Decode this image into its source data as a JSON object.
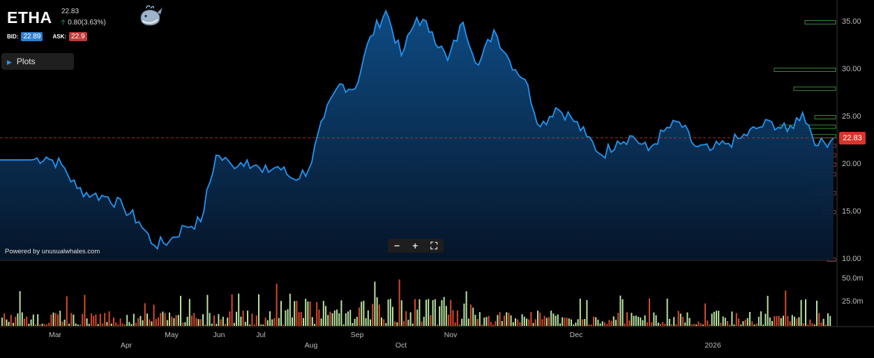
{
  "header": {
    "symbol": "ETHA",
    "last_price": "22.83",
    "change": "0.80(3.63%)",
    "bid_label": "BID:",
    "bid_value": "22.89",
    "ask_label": "ASK:",
    "ask_value": "22.9"
  },
  "controls": {
    "plots_label": "Plots",
    "zoom_out": "−",
    "zoom_in": "+",
    "fullscreen_icon": "fullscreen-icon"
  },
  "branding": {
    "powered_by": "Powered by unusualwhales.com",
    "logo_icon": "whale-logo-icon"
  },
  "colors": {
    "line": "#2196f3",
    "area_top": "#0f4f8a",
    "up_volume": "#b7e4a0",
    "down_volume": "#d84a2b",
    "current_price_tag": "#d9342b",
    "bid_pill": "#2f7fd0",
    "ask_pill": "#c03a3a"
  },
  "price_axis": {
    "labels": [
      "35.00",
      "30.00",
      "25.00",
      "20.00",
      "15.00",
      "10.00"
    ],
    "current_price_tag": "22.83"
  },
  "volume_axis": {
    "labels": [
      "50.0m",
      "25.0m"
    ]
  },
  "time_axis": {
    "labels": [
      "Mar",
      "Apr",
      "May",
      "Jun",
      "Jul",
      "Aug",
      "Sep",
      "Oct",
      "Nov",
      "Dec",
      "2026"
    ]
  },
  "chart_data": {
    "type": "area",
    "ylim": [
      10,
      37.5
    ],
    "current_price": 22.83,
    "grid": false,
    "x": [
      "2025-02-14",
      "2025-02-21",
      "2025-02-28",
      "2025-03-07",
      "2025-03-14",
      "2025-03-21",
      "2025-03-28",
      "2025-04-04",
      "2025-04-11",
      "2025-04-18",
      "2025-04-25",
      "2025-05-02",
      "2025-05-09",
      "2025-05-16",
      "2025-05-23",
      "2025-05-30",
      "2025-06-06",
      "2025-06-13",
      "2025-06-20",
      "2025-06-27",
      "2025-07-04",
      "2025-07-11",
      "2025-07-18",
      "2025-07-25",
      "2025-08-01",
      "2025-08-08",
      "2025-08-15",
      "2025-08-22",
      "2025-08-29",
      "2025-09-05",
      "2025-09-12",
      "2025-09-19",
      "2025-09-26",
      "2025-10-03",
      "2025-10-10",
      "2025-10-17",
      "2025-10-24",
      "2025-10-31",
      "2025-11-07",
      "2025-11-14",
      "2025-11-21",
      "2025-11-28",
      "2025-12-05",
      "2025-12-12",
      "2025-12-19",
      "2025-12-26",
      "2026-01-02",
      "2026-01-09",
      "2026-01-16",
      "2026-01-23",
      "2026-01-30",
      "2026-02-06",
      "2026-02-13"
    ],
    "y": [
      20.5,
      20.8,
      20.0,
      17.5,
      16.8,
      16.6,
      15.5,
      14.0,
      11.5,
      12.0,
      13.5,
      14.0,
      21.0,
      20.0,
      20.5,
      19.2,
      19.8,
      18.5,
      19.5,
      25.0,
      28.5,
      28.0,
      33.5,
      36.2,
      31.5,
      35.5,
      34.0,
      31.0,
      35.0,
      30.5,
      34.2,
      31.0,
      29.0,
      24.0,
      26.0,
      25.0,
      23.0,
      21.0,
      22.5,
      23.0,
      21.5,
      23.5,
      24.5,
      22.0,
      21.5,
      22.2,
      22.8,
      23.8,
      24.5,
      23.5,
      25.5,
      22.0,
      22.8
    ],
    "volume_profile": [
      {
        "price": 35.0,
        "side": "up"
      },
      {
        "price": 30.0,
        "side": "up"
      },
      {
        "price": 28.0,
        "side": "up"
      },
      {
        "price": 25.0,
        "side": "up"
      },
      {
        "price": 24.0,
        "side": "up"
      },
      {
        "price": 23.0,
        "side": "up"
      },
      {
        "price": 22.0,
        "side": "down"
      },
      {
        "price": 21.0,
        "side": "down"
      },
      {
        "price": 20.0,
        "side": "down"
      },
      {
        "price": 19.0,
        "side": "down"
      },
      {
        "price": 17.0,
        "side": "down"
      },
      {
        "price": 15.0,
        "side": "down"
      },
      {
        "price": 10.0,
        "side": "down"
      }
    ]
  }
}
